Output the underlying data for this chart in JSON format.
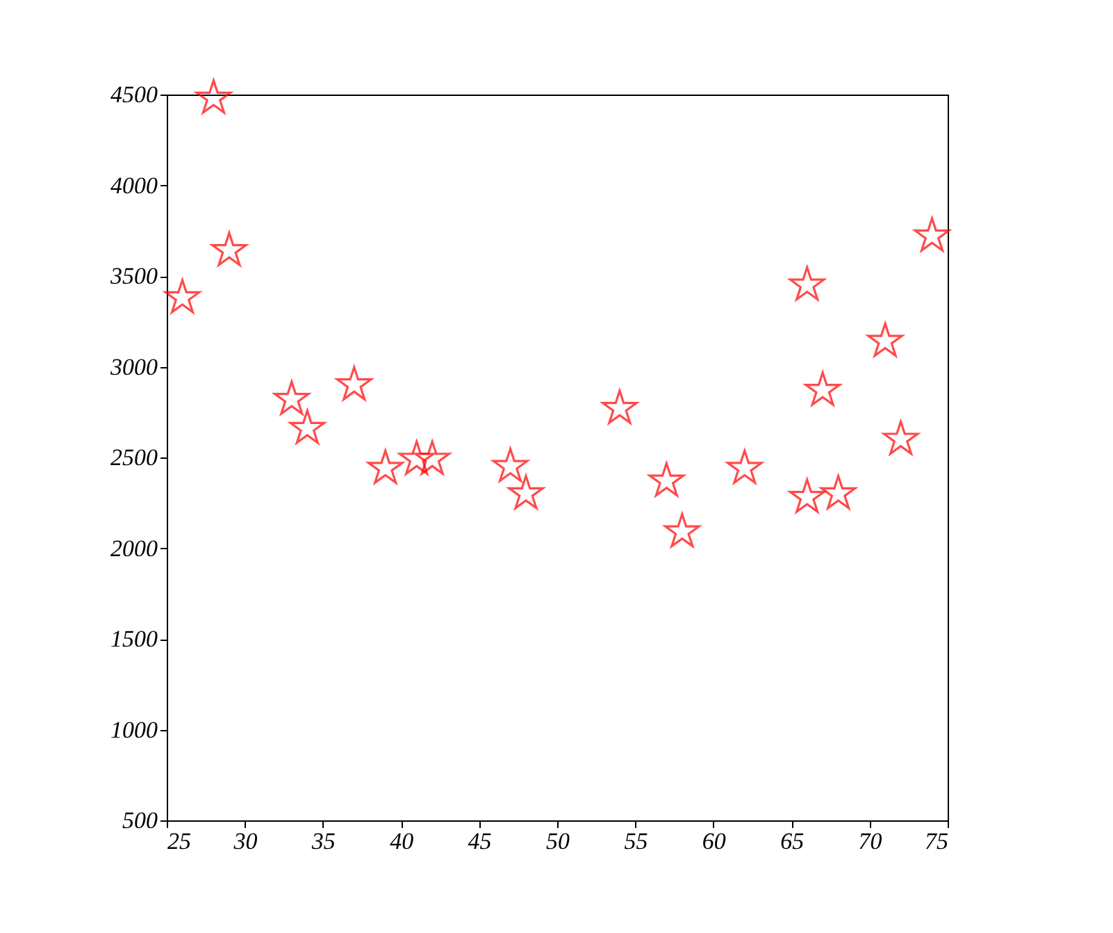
{
  "chart_data": {
    "type": "scatter",
    "marker": "star",
    "grid": false,
    "legend": false,
    "x": [
      26,
      28,
      29,
      33,
      34,
      37,
      39,
      41,
      42,
      47,
      48,
      54,
      57,
      58,
      62,
      66,
      66,
      67,
      68,
      71,
      72,
      74
    ],
    "series": [
      {
        "color": "#ff0000",
        "values": [
          3380,
          4480,
          3640,
          2820,
          2660,
          2900,
          2440,
          2490,
          2490,
          2450,
          2300,
          2770,
          2370,
          2090,
          2440,
          3450,
          2280,
          2870,
          2300,
          3140,
          2600,
          3720
        ]
      }
    ],
    "xlim": [
      25,
      75
    ],
    "xticks": [
      25,
      30,
      35,
      40,
      45,
      50,
      55,
      60,
      65,
      70,
      75
    ],
    "ylim": [
      500,
      4500
    ],
    "yticks": [
      500,
      1000,
      1500,
      2000,
      2500,
      3000,
      3500,
      4000,
      4500
    ]
  }
}
